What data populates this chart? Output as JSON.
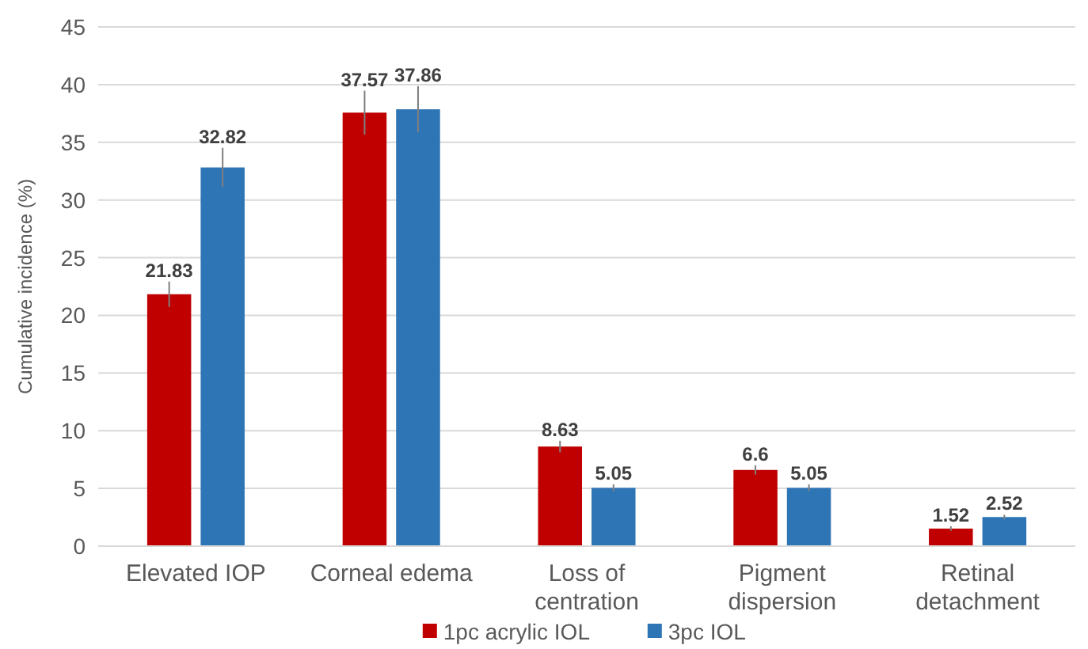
{
  "chart_data": {
    "type": "bar",
    "ylabel": "Cumulative incidence (%)",
    "categories": [
      "Elevated IOP",
      "Corneal edema",
      "Loss of centration",
      "Pigment dispersion",
      "Retinal detachment"
    ],
    "series": [
      {
        "name": "1pc acrylic IOL",
        "color": "#c00000",
        "values": [
          21.83,
          37.57,
          8.63,
          6.6,
          1.52
        ],
        "errors": [
          1.1,
          1.9,
          0.5,
          0.4,
          0.2
        ]
      },
      {
        "name": "3pc IOL",
        "color": "#2e75b6",
        "values": [
          32.82,
          37.86,
          5.05,
          5.05,
          2.52
        ],
        "errors": [
          1.7,
          2,
          0.3,
          0.3,
          0.2
        ]
      }
    ],
    "ylim": [
      0,
      45
    ],
    "yticks": [
      0,
      5,
      10,
      15,
      20,
      25,
      30,
      35,
      40,
      45
    ],
    "grid": "y",
    "legend": "bottom",
    "data_labels": true
  }
}
